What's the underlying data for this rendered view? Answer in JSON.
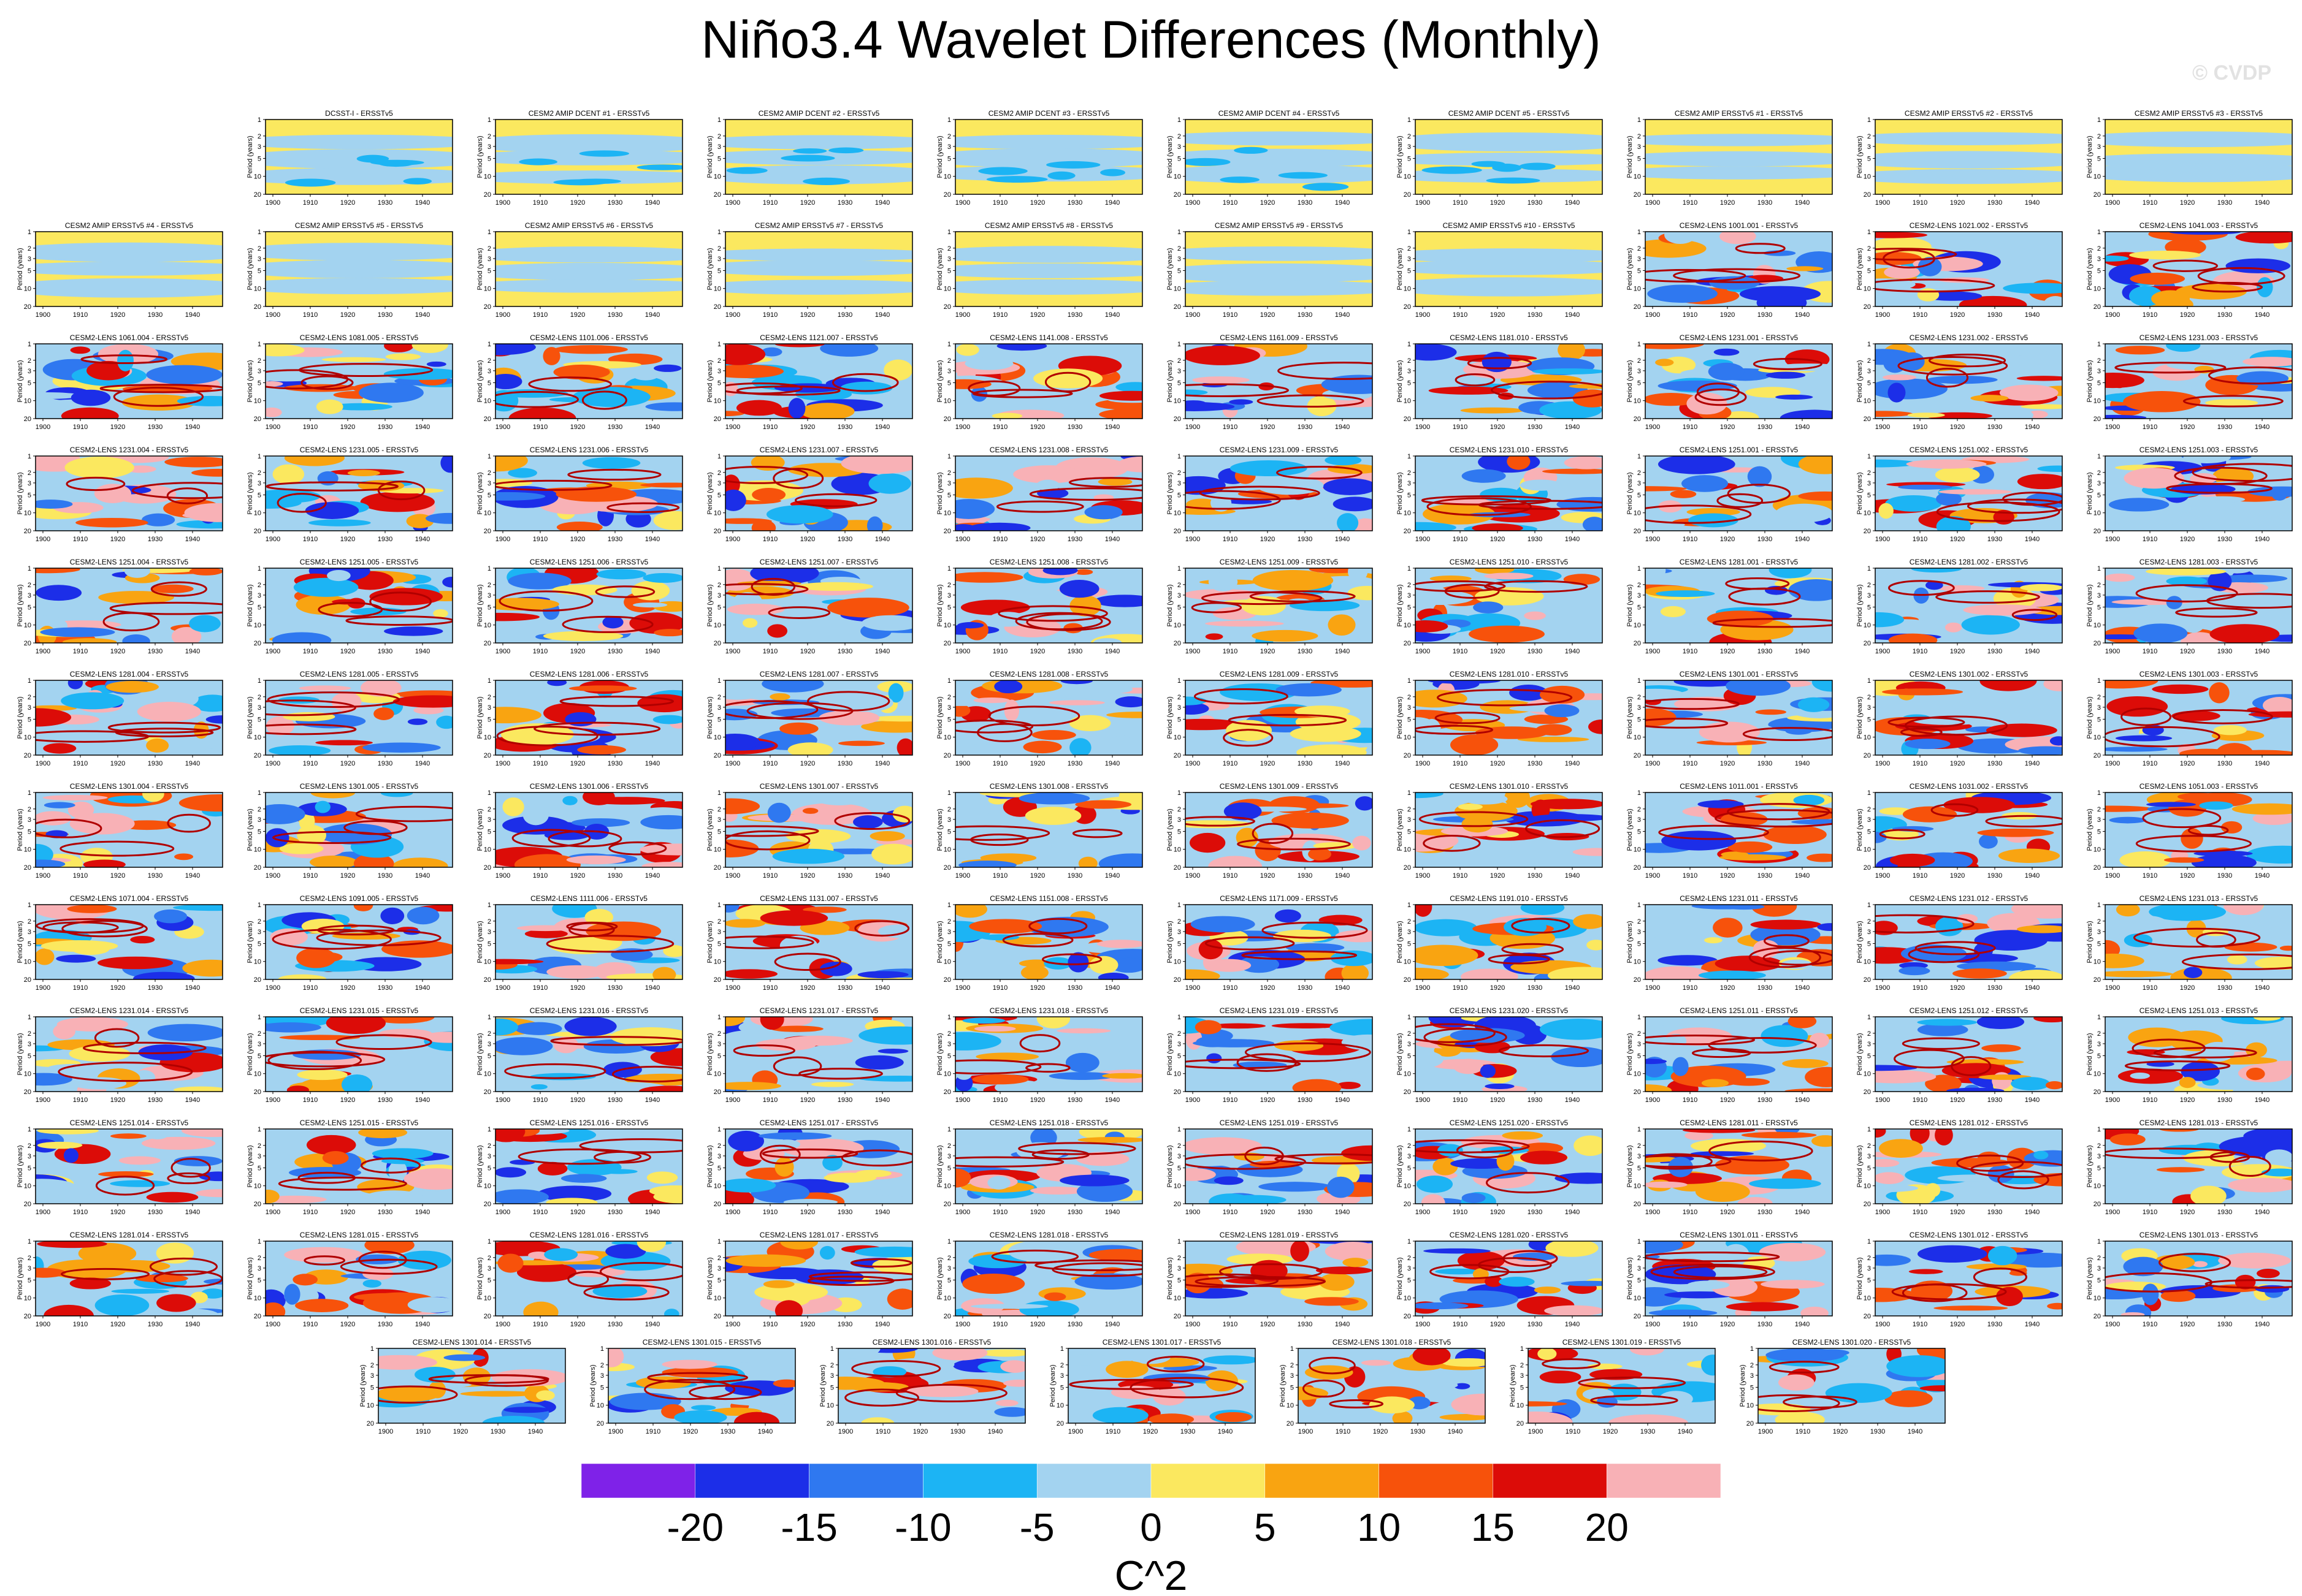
{
  "title": "Niño3.4 Wavelet Differences (Monthly)",
  "watermark": "© CVDP",
  "chart_data": {
    "type": "heatmap",
    "title": "Niño3.4 Wavelet Differences (Monthly)",
    "ylabel": "Period (years)",
    "xticks": [
      "1900",
      "1910",
      "1920",
      "1930",
      "1940"
    ],
    "yticks": [
      "1",
      "2",
      "3",
      "5",
      "10",
      "20"
    ],
    "colorbar": {
      "title": "C^2",
      "levels": [
        "-20",
        "-15",
        "-10",
        "-5",
        "0",
        "5",
        "10",
        "15",
        "20"
      ],
      "colors": [
        "#7f22e8",
        "#1c2ee8",
        "#2f78f0",
        "#1cb4f4",
        "#a3d3f0",
        "#fbe85f",
        "#f9a411",
        "#f7520b",
        "#dc0c08",
        "#f8b1b6"
      ]
    },
    "panels": [
      "DCSST-I - ERSSTv5",
      "CESM2 AMIP DCENT #1 - ERSSTv5",
      "CESM2 AMIP DCENT #2 - ERSSTv5",
      "CESM2 AMIP DCENT #3 - ERSSTv5",
      "CESM2 AMIP DCENT #4 - ERSSTv5",
      "CESM2 AMIP DCENT #5 - ERSSTv5",
      "CESM2 AMIP ERSSTv5 #1 - ERSSTv5",
      "CESM2 AMIP ERSSTv5 #2 - ERSSTv5",
      "CESM2 AMIP ERSSTv5 #3 - ERSSTv5",
      "CESM2 AMIP ERSSTv5 #4 - ERSSTv5",
      "CESM2 AMIP ERSSTv5 #5 - ERSSTv5",
      "CESM2 AMIP ERSSTv5 #6 - ERSSTv5",
      "CESM2 AMIP ERSSTv5 #7 - ERSSTv5",
      "CESM2 AMIP ERSSTv5 #8 - ERSSTv5",
      "CESM2 AMIP ERSSTv5 #9 - ERSSTv5",
      "CESM2 AMIP ERSSTv5 #10 - ERSSTv5",
      "CESM2-LENS 1001.001 - ERSSTv5",
      "CESM2-LENS 1021.002 - ERSSTv5",
      "CESM2-LENS 1041.003 - ERSSTv5",
      "CESM2-LENS 1061.004 - ERSSTv5",
      "CESM2-LENS 1081.005 - ERSSTv5",
      "CESM2-LENS 1101.006 - ERSSTv5",
      "CESM2-LENS 1121.007 - ERSSTv5",
      "CESM2-LENS 1141.008 - ERSSTv5",
      "CESM2-LENS 1161.009 - ERSSTv5",
      "CESM2-LENS 1181.010 - ERSSTv5",
      "CESM2-LENS 1231.001 - ERSSTv5",
      "CESM2-LENS 1231.002 - ERSSTv5",
      "CESM2-LENS 1231.003 - ERSSTv5",
      "CESM2-LENS 1231.004 - ERSSTv5",
      "CESM2-LENS 1231.005 - ERSSTv5",
      "CESM2-LENS 1231.006 - ERSSTv5",
      "CESM2-LENS 1231.007 - ERSSTv5",
      "CESM2-LENS 1231.008 - ERSSTv5",
      "CESM2-LENS 1231.009 - ERSSTv5",
      "CESM2-LENS 1231.010 - ERSSTv5",
      "CESM2-LENS 1251.001 - ERSSTv5",
      "CESM2-LENS 1251.002 - ERSSTv5",
      "CESM2-LENS 1251.003 - ERSSTv5",
      "CESM2-LENS 1251.004 - ERSSTv5",
      "CESM2-LENS 1251.005 - ERSSTv5",
      "CESM2-LENS 1251.006 - ERSSTv5",
      "CESM2-LENS 1251.007 - ERSSTv5",
      "CESM2-LENS 1251.008 - ERSSTv5",
      "CESM2-LENS 1251.009 - ERSSTv5",
      "CESM2-LENS 1251.010 - ERSSTv5",
      "CESM2-LENS 1281.001 - ERSSTv5",
      "CESM2-LENS 1281.002 - ERSSTv5",
      "CESM2-LENS 1281.003 - ERSSTv5",
      "CESM2-LENS 1281.004 - ERSSTv5",
      "CESM2-LENS 1281.005 - ERSSTv5",
      "CESM2-LENS 1281.006 - ERSSTv5",
      "CESM2-LENS 1281.007 - ERSSTv5",
      "CESM2-LENS 1281.008 - ERSSTv5",
      "CESM2-LENS 1281.009 - ERSSTv5",
      "CESM2-LENS 1281.010 - ERSSTv5",
      "CESM2-LENS 1301.001 - ERSSTv5",
      "CESM2-LENS 1301.002 - ERSSTv5",
      "CESM2-LENS 1301.003 - ERSSTv5",
      "CESM2-LENS 1301.004 - ERSSTv5",
      "CESM2-LENS 1301.005 - ERSSTv5",
      "CESM2-LENS 1301.006 - ERSSTv5",
      "CESM2-LENS 1301.007 - ERSSTv5",
      "CESM2-LENS 1301.008 - ERSSTv5",
      "CESM2-LENS 1301.009 - ERSSTv5",
      "CESM2-LENS 1301.010 - ERSSTv5",
      "CESM2-LENS 1011.001 - ERSSTv5",
      "CESM2-LENS 1031.002 - ERSSTv5",
      "CESM2-LENS 1051.003 - ERSSTv5",
      "CESM2-LENS 1071.004 - ERSSTv5",
      "CESM2-LENS 1091.005 - ERSSTv5",
      "CESM2-LENS 1111.006 - ERSSTv5",
      "CESM2-LENS 1131.007 - ERSSTv5",
      "CESM2-LENS 1151.008 - ERSSTv5",
      "CESM2-LENS 1171.009 - ERSSTv5",
      "CESM2-LENS 1191.010 - ERSSTv5",
      "CESM2-LENS 1231.011 - ERSSTv5",
      "CESM2-LENS 1231.012 - ERSSTv5",
      "CESM2-LENS 1231.013 - ERSSTv5",
      "CESM2-LENS 1231.014 - ERSSTv5",
      "CESM2-LENS 1231.015 - ERSSTv5",
      "CESM2-LENS 1231.016 - ERSSTv5",
      "CESM2-LENS 1231.017 - ERSSTv5",
      "CESM2-LENS 1231.018 - ERSSTv5",
      "CESM2-LENS 1231.019 - ERSSTv5",
      "CESM2-LENS 1231.020 - ERSSTv5",
      "CESM2-LENS 1251.011 - ERSSTv5",
      "CESM2-LENS 1251.012 - ERSSTv5",
      "CESM2-LENS 1251.013 - ERSSTv5",
      "CESM2-LENS 1251.014 - ERSSTv5",
      "CESM2-LENS 1251.015 - ERSSTv5",
      "CESM2-LENS 1251.016 - ERSSTv5",
      "CESM2-LENS 1251.017 - ERSSTv5",
      "CESM2-LENS 1251.018 - ERSSTv5",
      "CESM2-LENS 1251.019 - ERSSTv5",
      "CESM2-LENS 1251.020 - ERSSTv5",
      "CESM2-LENS 1281.011 - ERSSTv5",
      "CESM2-LENS 1281.012 - ERSSTv5",
      "CESM2-LENS 1281.013 - ERSSTv5",
      "CESM2-LENS 1281.014 - ERSSTv5",
      "CESM2-LENS 1281.015 - ERSSTv5",
      "CESM2-LENS 1281.016 - ERSSTv5",
      "CESM2-LENS 1281.017 - ERSSTv5",
      "CESM2-LENS 1281.018 - ERSSTv5",
      "CESM2-LENS 1281.019 - ERSSTv5",
      "CESM2-LENS 1281.020 - ERSSTv5",
      "CESM2-LENS 1301.011 - ERSSTv5",
      "CESM2-LENS 1301.012 - ERSSTv5",
      "CESM2-LENS 1301.013 - ERSSTv5",
      "CESM2-LENS 1301.014 - ERSSTv5",
      "CESM2-LENS 1301.015 - ERSSTv5",
      "CESM2-LENS 1301.016 - ERSSTv5",
      "CESM2-LENS 1301.017 - ERSSTv5",
      "CESM2-LENS 1301.018 - ERSSTv5",
      "CESM2-LENS 1301.019 - ERSSTv5",
      "CESM2-LENS 1301.020 - ERSSTv5"
    ]
  }
}
